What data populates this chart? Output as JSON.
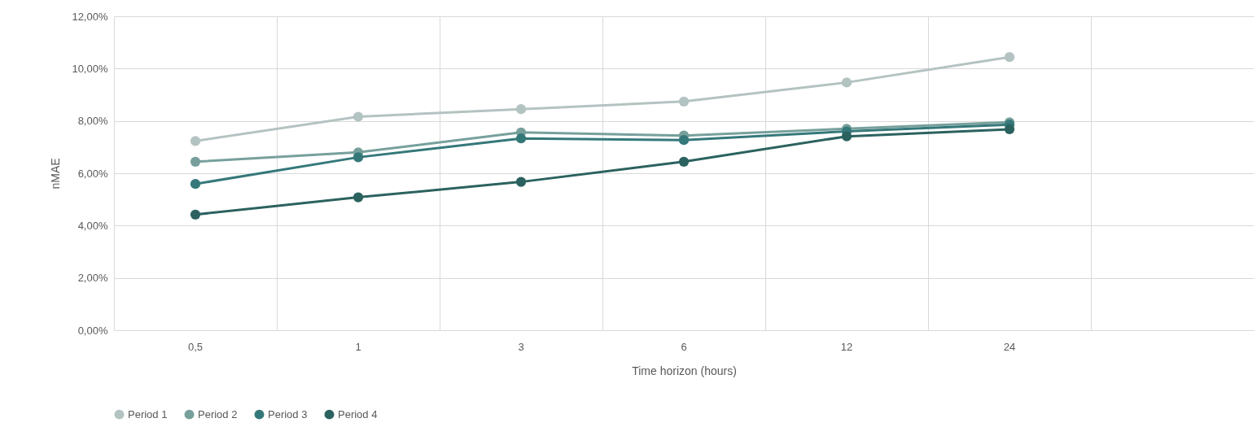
{
  "chart_data": {
    "type": "line",
    "xlabel": "Time horizon (hours)",
    "ylabel": "nMAE",
    "categories": [
      "0,5",
      "1",
      "3",
      "6",
      "12",
      "24",
      null
    ],
    "series": [
      {
        "name": "Period 1",
        "color": "#b3c3c1",
        "values": [
          7.23,
          8.16,
          8.45,
          8.74,
          9.47,
          10.44,
          null
        ]
      },
      {
        "name": "Period 2",
        "color": "#77a09c",
        "values": [
          6.44,
          6.8,
          7.56,
          7.44,
          7.7,
          7.95,
          null
        ]
      },
      {
        "name": "Period 3",
        "color": "#35787a",
        "values": [
          5.59,
          6.61,
          7.33,
          7.27,
          7.6,
          7.86,
          null
        ]
      },
      {
        "name": "Period 4",
        "color": "#2b625f",
        "values": [
          4.42,
          5.08,
          5.67,
          6.44,
          7.41,
          7.68,
          null
        ]
      }
    ],
    "ylim": [
      0,
      12
    ],
    "yticks": [
      {
        "value": 0,
        "label": "0,00%"
      },
      {
        "value": 2,
        "label": "2,00%"
      },
      {
        "value": 4,
        "label": "4,00%"
      },
      {
        "value": 6,
        "label": "6,00%"
      },
      {
        "value": 8,
        "label": "8,00%"
      },
      {
        "value": 10,
        "label": "10,00%"
      },
      {
        "value": 12,
        "label": "12,00%"
      }
    ],
    "grid": true,
    "legend": "bottom left",
    "marker": "circle",
    "line_style": "solid"
  }
}
